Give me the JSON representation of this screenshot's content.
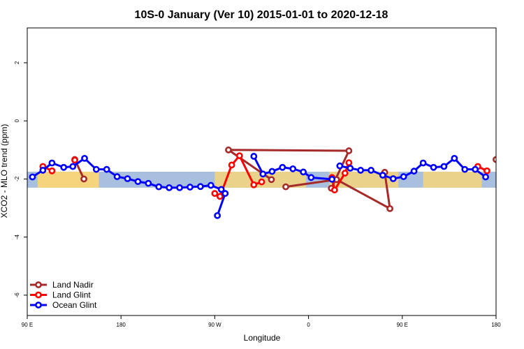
{
  "chart_data": {
    "type": "line",
    "title": "10S-0 January (Ver 10)   2015-01-01 to 2020-12-18",
    "xlabel": "Longitude",
    "ylabel": "XCO2 - MLO trend (ppm)",
    "xlim": [
      -90,
      270
    ],
    "ylim": [
      -6.7,
      3.2
    ],
    "x_ticks": [
      {
        "value": -90,
        "label": "90 E"
      },
      {
        "value": -18,
        "label": "180"
      },
      {
        "value": 54,
        "label": "90 W"
      },
      {
        "value": 126,
        "label": "0"
      },
      {
        "value": 198,
        "label": "90 E"
      },
      {
        "value": 270,
        "label": "180"
      }
    ],
    "y_ticks": [
      {
        "value": 2,
        "label": "2"
      },
      {
        "value": 0,
        "label": "0"
      },
      {
        "value": -2,
        "label": "-2"
      },
      {
        "value": -4,
        "label": "-4"
      },
      {
        "value": -6,
        "label": "-6"
      }
    ],
    "grid": false,
    "legend_position": "bottom-left",
    "band": {
      "y_min": -2.3,
      "y_max": -1.75
    },
    "land_spans": [
      [
        -82,
        -35
      ],
      [
        54,
        124
      ],
      [
        -82,
        -35
      ],
      [
        142,
        195
      ],
      [
        214,
        259
      ]
    ],
    "series": [
      {
        "name": "Land Nadir",
        "color": "#a52a2a",
        "segments": [
          [
            [
              -53.5,
              -1.33
            ],
            [
              -46.5,
              -2.0
            ]
          ],
          [
            [
              97.5,
              -2.02
            ],
            [
              64.5,
              -1.0
            ],
            [
              157,
              -1.03
            ],
            [
              143.5,
              -2.32
            ]
          ],
          [
            [
              108.5,
              -2.27
            ],
            [
              147.5,
              -2.02
            ],
            [
              188.5,
              -3.02
            ],
            [
              184.5,
              -1.77
            ]
          ],
          [
            [
              270,
              -1.33
            ],
            [
              302.5,
              -1.99
            ]
          ]
        ]
      },
      {
        "name": "Land Glint",
        "color": "#ff0000",
        "segments": [
          [
            [
              -78,
              -1.57
            ],
            [
              -71,
              -1.72
            ]
          ],
          [
            [
              -53.5,
              -1.35
            ]
          ],
          [
            [
              54,
              -2.5
            ],
            [
              58,
              -2.6
            ],
            [
              67,
              -1.52
            ],
            [
              73,
              -1.2
            ],
            [
              84,
              -2.2
            ],
            [
              90,
              -2.1
            ]
          ],
          [
            [
              144,
              -1.95
            ],
            [
              146,
              -2.38
            ],
            [
              154,
              -1.8
            ],
            [
              157,
              -1.44
            ]
          ],
          [
            [
              256,
              -1.57
            ],
            [
              263,
              -1.72
            ]
          ],
          [
            [
              283,
              -1.35
            ]
          ]
        ]
      },
      {
        "name": "Ocean Glint",
        "color": "#0000ff",
        "segments": [
          [
            [
              -86,
              -1.93
            ],
            [
              -78,
              -1.7
            ],
            [
              -71,
              -1.45
            ],
            [
              -62,
              -1.6
            ],
            [
              -55,
              -1.57
            ],
            [
              -46,
              -1.29
            ],
            [
              -37,
              -1.67
            ],
            [
              -29,
              -1.67
            ],
            [
              -21,
              -1.92
            ],
            [
              -13,
              -1.99
            ],
            [
              -5,
              -2.09
            ],
            [
              3,
              -2.15
            ],
            [
              11,
              -2.27
            ],
            [
              19,
              -2.3
            ],
            [
              27,
              -2.3
            ],
            [
              35,
              -2.28
            ],
            [
              43,
              -2.26
            ],
            [
              51,
              -2.22
            ],
            [
              59,
              -2.36
            ],
            [
              62,
              -2.5
            ],
            [
              56,
              -3.26
            ]
          ],
          [
            [
              84,
              -1.22
            ],
            [
              91,
              -1.83
            ],
            [
              98,
              -1.74
            ],
            [
              106,
              -1.6
            ],
            [
              114,
              -1.65
            ],
            [
              122,
              -1.76
            ],
            [
              128,
              -1.95
            ],
            [
              144,
              -2.01
            ]
          ],
          [
            [
              150,
              -1.55
            ],
            [
              158,
              -1.63
            ],
            [
              166,
              -1.7
            ],
            [
              174,
              -1.7
            ],
            [
              183,
              -1.87
            ],
            [
              191,
              -1.99
            ],
            [
              199,
              -1.92
            ],
            [
              207,
              -1.73
            ],
            [
              214,
              -1.45
            ],
            [
              222,
              -1.6
            ],
            [
              230,
              -1.57
            ],
            [
              238,
              -1.29
            ],
            [
              246,
              -1.67
            ],
            [
              254,
              -1.67
            ],
            [
              262,
              -1.93
            ]
          ]
        ]
      }
    ]
  }
}
